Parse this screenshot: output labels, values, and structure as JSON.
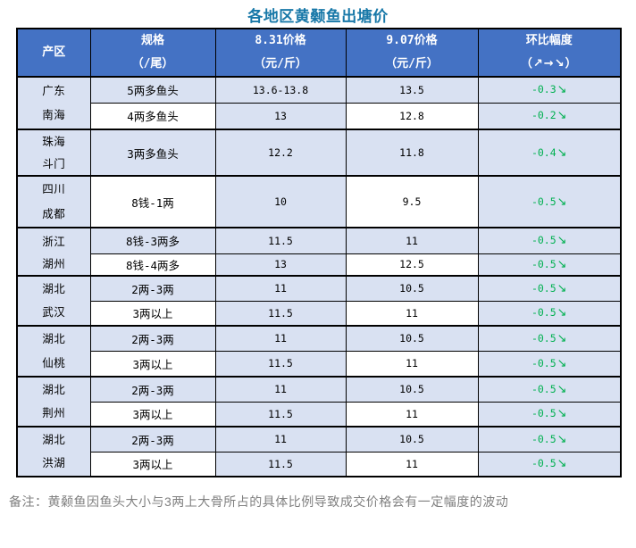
{
  "title": "各地区黄颡鱼出塘价",
  "footnote": "备注：黄颡鱼因鱼头大小与3两上大骨所占的具体比例导致成交价格会有一定幅度的波动",
  "colors": {
    "header_bg": "#4472C4",
    "row_light_blue": "#D9E1F2",
    "row_white": "#FFFFFF",
    "border": "#000000",
    "title_text": "#1878A8",
    "change_green": "#00B050",
    "footnote_gray": "#808080",
    "header_text": "#FFFFFF",
    "body_text": "#000000"
  },
  "table": {
    "headers": [
      {
        "line1": "产区",
        "line2": ""
      },
      {
        "line1": "规格",
        "line2": "（/尾）"
      },
      {
        "line1": "8.31价格",
        "line2": "（元/斤）"
      },
      {
        "line1": "9.07价格",
        "line2": "（元/斤）"
      },
      {
        "line1": "环比幅度",
        "line2": "（↗→↘）"
      }
    ],
    "blocks": [
      {
        "region_line1": "广东",
        "region_line2": "南海",
        "merged": false,
        "rows": [
          {
            "spec": "5两多鱼头",
            "price_831": "13.6-13.8",
            "price_907": "13.5",
            "change": "-0.3",
            "arrow": "↘"
          },
          {
            "spec": "4两多鱼头",
            "price_831": "13",
            "price_907": "12.8",
            "change": "-0.2",
            "arrow": "↘"
          }
        ]
      },
      {
        "region_line1": "珠海",
        "region_line2": "斗门",
        "merged": true,
        "rows": [
          {
            "spec": "3两多鱼头",
            "price_831": "12.2",
            "price_907": "11.8",
            "change": "-0.4",
            "arrow": "↘"
          }
        ]
      },
      {
        "region_line1": "四川",
        "region_line2": "成都",
        "merged": true,
        "rows": [
          {
            "spec": "8钱-1两",
            "price_831": "10",
            "price_907": "9.5",
            "change": "-0.5",
            "arrow": "↘"
          }
        ]
      },
      {
        "region_line1": "浙江",
        "region_line2": "湖州",
        "merged": false,
        "rows": [
          {
            "spec": "8钱-3两多",
            "price_831": "11.5",
            "price_907": "11",
            "change": "-0.5",
            "arrow": "↘"
          },
          {
            "spec": "8钱-4两多",
            "price_831": "13",
            "price_907": "12.5",
            "change": "-0.5",
            "arrow": "↘"
          }
        ]
      },
      {
        "region_line1": "湖北",
        "region_line2": "武汉",
        "merged": false,
        "rows": [
          {
            "spec": "2两-3两",
            "price_831": "11",
            "price_907": "10.5",
            "change": "-0.5",
            "arrow": "↘"
          },
          {
            "spec": "3两以上",
            "price_831": "11.5",
            "price_907": "11",
            "change": "-0.5",
            "arrow": "↘"
          }
        ]
      },
      {
        "region_line1": "湖北",
        "region_line2": "仙桃",
        "merged": false,
        "rows": [
          {
            "spec": "2两-3两",
            "price_831": "11",
            "price_907": "10.5",
            "change": "-0.5",
            "arrow": "↘"
          },
          {
            "spec": "3两以上",
            "price_831": "11.5",
            "price_907": "11",
            "change": "-0.5",
            "arrow": "↘"
          }
        ]
      },
      {
        "region_line1": "湖北",
        "region_line2": "荆州",
        "merged": false,
        "rows": [
          {
            "spec": "2两-3两",
            "price_831": "11",
            "price_907": "10.5",
            "change": "-0.5",
            "arrow": "↘"
          },
          {
            "spec": "3两以上",
            "price_831": "11.5",
            "price_907": "11",
            "change": "-0.5",
            "arrow": "↘"
          }
        ]
      },
      {
        "region_line1": "湖北",
        "region_line2": "洪湖",
        "merged": false,
        "rows": [
          {
            "spec": "2两-3两",
            "price_831": "11",
            "price_907": "10.5",
            "change": "-0.5",
            "arrow": "↘"
          },
          {
            "spec": "3两以上",
            "price_831": "11.5",
            "price_907": "11",
            "change": "-0.5",
            "arrow": "↘"
          }
        ]
      }
    ]
  },
  "chart_data": {
    "type": "table",
    "title": "各地区黄颡鱼出塘价",
    "columns": [
      "产区",
      "规格（/尾）",
      "8.31价格（元/斤）",
      "9.07价格（元/斤）",
      "环比幅度（↗→↘）"
    ],
    "rows": [
      [
        "广东南海",
        "5两多鱼头",
        "13.6-13.8",
        "13.5",
        "-0.3↘"
      ],
      [
        "广东南海",
        "4两多鱼头",
        "13",
        "12.8",
        "-0.2↘"
      ],
      [
        "珠海斗门",
        "3两多鱼头",
        "12.2",
        "11.8",
        "-0.4↘"
      ],
      [
        "四川成都",
        "8钱-1两",
        "10",
        "9.5",
        "-0.5↘"
      ],
      [
        "浙江湖州",
        "8钱-3两多",
        "11.5",
        "11",
        "-0.5↘"
      ],
      [
        "浙江湖州",
        "8钱-4两多",
        "13",
        "12.5",
        "-0.5↘"
      ],
      [
        "湖北武汉",
        "2两-3两",
        "11",
        "10.5",
        "-0.5↘"
      ],
      [
        "湖北武汉",
        "3两以上",
        "11.5",
        "11",
        "-0.5↘"
      ],
      [
        "湖北仙桃",
        "2两-3两",
        "11",
        "10.5",
        "-0.5↘"
      ],
      [
        "湖北仙桃",
        "3两以上",
        "11.5",
        "11",
        "-0.5↘"
      ],
      [
        "湖北荆州",
        "2两-3两",
        "11",
        "10.5",
        "-0.5↘"
      ],
      [
        "湖北荆州",
        "3两以上",
        "11.5",
        "11",
        "-0.5↘"
      ],
      [
        "湖北洪湖",
        "2两-3两",
        "11",
        "10.5",
        "-0.5↘"
      ],
      [
        "湖北洪湖",
        "3两以上",
        "11.5",
        "11",
        "-0.5↘"
      ]
    ],
    "footnote": "备注：黄颡鱼因鱼头大小与3两上大骨所占的具体比例导致成交价格会有一定幅度的波动"
  }
}
